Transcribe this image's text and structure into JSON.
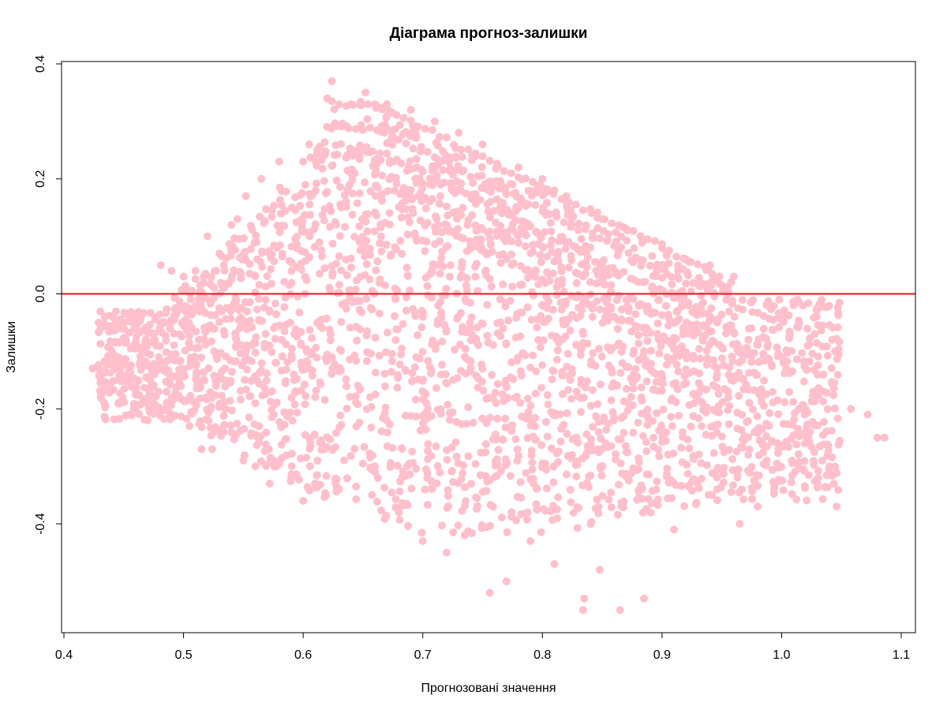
{
  "chart_data": {
    "type": "scatter",
    "title": "Діаграма прогноз-залишки",
    "xlabel": "Прогнозовані значення",
    "ylabel": "Залишки",
    "xlim": [
      0.4,
      1.1
    ],
    "ylim": [
      -0.6,
      0.4
    ],
    "x_ticks": [
      0.4,
      0.5,
      0.6,
      0.7,
      0.8,
      0.9,
      1.0,
      1.1
    ],
    "x_tick_labels": [
      "0.4",
      "0.5",
      "0.6",
      "0.7",
      "0.8",
      "0.9",
      "1.0",
      "1.1"
    ],
    "y_ticks": [
      -0.4,
      -0.2,
      0.0,
      0.2,
      0.4
    ],
    "y_tick_labels": [
      "-0.4",
      "-0.2",
      "0.0",
      "0.2",
      "0.4"
    ],
    "grid": false,
    "reference_line": {
      "y": 0.0,
      "color": "#e31a1c"
    },
    "point_color": "#ffc0cb",
    "points": [
      [
        0.424,
        -0.13
      ],
      [
        0.437,
        -0.17
      ],
      [
        0.44,
        -0.11
      ],
      [
        0.445,
        -0.15
      ],
      [
        0.449,
        -0.18
      ],
      [
        0.455,
        -0.21
      ],
      [
        0.458,
        -0.09
      ],
      [
        0.462,
        -0.05
      ],
      [
        0.47,
        -0.22
      ],
      [
        0.472,
        -0.15
      ],
      [
        0.476,
        -0.08
      ],
      [
        0.481,
        0.05
      ],
      [
        0.485,
        -0.2
      ],
      [
        0.49,
        0.04
      ],
      [
        0.495,
        -0.03
      ],
      [
        0.5,
        0.03
      ],
      [
        0.505,
        -0.23
      ],
      [
        0.51,
        0.04
      ],
      [
        0.515,
        -0.27
      ],
      [
        0.52,
        0.1
      ],
      [
        0.524,
        -0.27
      ],
      [
        0.53,
        0.07
      ],
      [
        0.535,
        -0.2
      ],
      [
        0.54,
        0.12
      ],
      [
        0.545,
        0.13
      ],
      [
        0.55,
        -0.29
      ],
      [
        0.552,
        0.17
      ],
      [
        0.56,
        -0.3
      ],
      [
        0.565,
        0.2
      ],
      [
        0.572,
        -0.33
      ],
      [
        0.58,
        0.23
      ],
      [
        0.59,
        -0.32
      ],
      [
        0.6,
        -0.36
      ],
      [
        0.605,
        0.26
      ],
      [
        0.61,
        -0.33
      ],
      [
        0.62,
        0.34
      ],
      [
        0.624,
        0.37
      ],
      [
        0.63,
        -0.34
      ],
      [
        0.64,
        0.33
      ],
      [
        0.652,
        0.35
      ],
      [
        0.66,
        -0.3
      ],
      [
        0.67,
        0.33
      ],
      [
        0.68,
        -0.38
      ],
      [
        0.69,
        0.32
      ],
      [
        0.7,
        -0.43
      ],
      [
        0.71,
        0.3
      ],
      [
        0.72,
        -0.45
      ],
      [
        0.73,
        0.28
      ],
      [
        0.735,
        -0.42
      ],
      [
        0.75,
        0.26
      ],
      [
        0.756,
        -0.52
      ],
      [
        0.77,
        -0.5
      ],
      [
        0.78,
        0.22
      ],
      [
        0.79,
        -0.43
      ],
      [
        0.8,
        0.2
      ],
      [
        0.81,
        -0.47
      ],
      [
        0.82,
        0.17
      ],
      [
        0.834,
        -0.55
      ],
      [
        0.835,
        -0.53
      ],
      [
        0.848,
        -0.48
      ],
      [
        0.85,
        0.13
      ],
      [
        0.865,
        -0.55
      ],
      [
        0.885,
        -0.53
      ],
      [
        0.9,
        0.08
      ],
      [
        0.91,
        -0.41
      ],
      [
        0.92,
        0.06
      ],
      [
        0.94,
        0.05
      ],
      [
        0.96,
        0.03
      ],
      [
        0.965,
        -0.4
      ],
      [
        0.98,
        -0.37
      ],
      [
        0.998,
        -0.01
      ],
      [
        1.01,
        -0.02
      ],
      [
        1.02,
        -0.2
      ],
      [
        1.03,
        -0.33
      ],
      [
        1.04,
        -0.3
      ],
      [
        1.046,
        -0.37
      ],
      [
        1.058,
        -0.2
      ],
      [
        1.072,
        -0.21
      ],
      [
        1.08,
        -0.25
      ],
      [
        1.086,
        -0.25
      ]
    ],
    "point_cloud_note": "dense band"
  }
}
